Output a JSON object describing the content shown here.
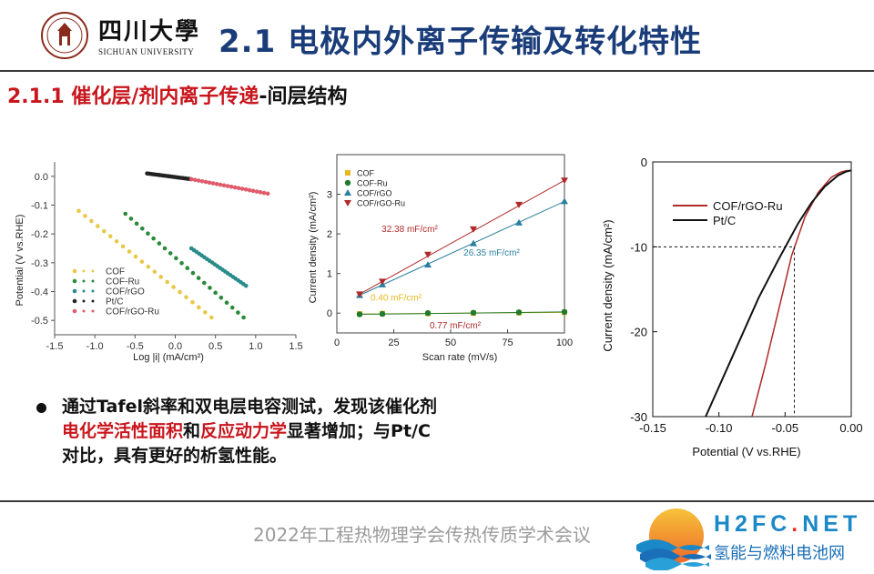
{
  "header": {
    "university_cn": "四川大學",
    "university_en": "SICHUAN UNIVERSITY",
    "title": "2.1 电极内外离子传输及转化特性"
  },
  "subheading": {
    "red_part": "2.1.1 催化层/剂内离子传递",
    "dark_part": "-间层结构"
  },
  "bullet": {
    "line1": "通过Tafel斜率和双电层电容测试，发现该催化剂",
    "line2_red_a": "电化学活性面积",
    "line2_mid": "和",
    "line2_red_b": "反应动力学",
    "line2_end": "显著增加；与Pt/C",
    "line3": "对比，具有更好的析氢性能。"
  },
  "footer": {
    "text": "2022年工程热物理学会传热传质学术会议",
    "brand": "H2FC",
    "brand_dot": ".",
    "brand_net": "NET",
    "brand_sub": "氢能与燃料电池网"
  },
  "colors": {
    "title_blue": "#1a3d7a",
    "accent_red": "#c8161d",
    "cof": "#e8c84a",
    "cof_ru": "#2a8a3a",
    "cof_rgo": "#2a8a8a",
    "ptc": "#222222",
    "cof_rgo_ru": "#e05a6a",
    "rate_cof": "#e8b820",
    "rate_cof_ru": "#1e7a2e",
    "rate_cof_rgo": "#2a7fa0",
    "rate_cof_rgo_ru": "#b02a2a"
  },
  "chart_data": [
    {
      "type": "scatter",
      "xlabel": "Log |i| (mA/cm²)",
      "ylabel": "Potential (V vs.RHE)",
      "xlim": [
        -1.5,
        1.5
      ],
      "ylim": [
        -0.55,
        0.05
      ],
      "xticks": [
        "-1.5",
        "-1.0",
        "-0.5",
        "0.0",
        "0.5",
        "1.0",
        "1.5"
      ],
      "yticks": [
        "0.0",
        "-0.1",
        "-0.2",
        "-0.3",
        "-0.4",
        "-0.5"
      ],
      "legend_position": "bottom-left",
      "series": [
        {
          "name": "COF",
          "color": "#e8c84a",
          "start": [
            -1.2,
            -0.12
          ],
          "end": [
            0.45,
            -0.49
          ]
        },
        {
          "name": "COF-Ru",
          "color": "#2a8a3a",
          "start": [
            -0.62,
            -0.13
          ],
          "end": [
            0.85,
            -0.49
          ]
        },
        {
          "name": "COF/rGO",
          "color": "#2a8a8a",
          "start": [
            0.2,
            -0.25
          ],
          "end": [
            0.88,
            -0.38
          ]
        },
        {
          "name": "Pt/C",
          "color": "#222222",
          "start": [
            -0.35,
            0.01
          ],
          "end": [
            0.2,
            -0.01
          ]
        },
        {
          "name": "COF/rGO-Ru",
          "color": "#e05a6a",
          "start": [
            0.2,
            -0.01
          ],
          "end": [
            1.15,
            -0.06
          ]
        }
      ]
    },
    {
      "type": "line",
      "xlabel": "Scan rate  (mV/s)",
      "ylabel": "Current density (mA/cm²)",
      "xlim": [
        0,
        100
      ],
      "ylim": [
        -0.5,
        4.0
      ],
      "xticks": [
        "0",
        "25",
        "50",
        "75",
        "100"
      ],
      "yticks": [
        "0",
        "1",
        "2",
        "3"
      ],
      "legend_position": "top-left",
      "x": [
        10,
        20,
        40,
        60,
        80,
        100
      ],
      "series": [
        {
          "name": "COF",
          "color": "#e8b820",
          "values": [
            -0.02,
            -0.01,
            -0.01,
            0.0,
            0.01,
            0.02
          ]
        },
        {
          "name": "COF-Ru",
          "color": "#1e7a2e",
          "values": [
            -0.03,
            -0.02,
            0.0,
            0.01,
            0.02,
            0.03
          ]
        },
        {
          "name": "COF/rGO",
          "color": "#2a7fa0",
          "values": [
            0.45,
            0.72,
            1.22,
            1.76,
            2.28,
            2.82
          ]
        },
        {
          "name": "COF/rGO-Ru",
          "color": "#b02a2a",
          "values": [
            0.48,
            0.8,
            1.48,
            2.12,
            2.74,
            3.35
          ]
        }
      ],
      "annotations": [
        {
          "text": "32.38 mF/cm²",
          "x": 32,
          "y": 2.05,
          "color": "#b02a2a"
        },
        {
          "text": "26.35 mF/cm²",
          "x": 68,
          "y": 1.45,
          "color": "#2a7fa0"
        },
        {
          "text": "0.40 mF/cm²",
          "x": 26,
          "y": 0.32,
          "color": "#e8b820"
        },
        {
          "text": "0.77 mF/cm²",
          "x": 52,
          "y": -0.38,
          "color": "#b02a2a"
        }
      ]
    },
    {
      "type": "line",
      "xlabel": "Potential (V vs.RHE)",
      "ylabel": "Current density (mA/cm²)",
      "xlim": [
        -0.15,
        0.0
      ],
      "ylim": [
        -30,
        0
      ],
      "xticks": [
        "-0.15",
        "-0.10",
        "-0.05",
        "0.00"
      ],
      "yticks": [
        "0",
        "-10",
        "-20",
        "-30"
      ],
      "legend_position": "top-left",
      "series": [
        {
          "name": "COF/rGO-Ru",
          "color": "#b02a2a",
          "x": [
            -0.075,
            -0.065,
            -0.055,
            -0.045,
            -0.035,
            -0.025,
            -0.015,
            -0.008,
            -0.004,
            0.0
          ],
          "values": [
            -30,
            -24,
            -17.5,
            -11,
            -6.5,
            -3.6,
            -1.8,
            -1.2,
            -1.05,
            -1.0
          ]
        },
        {
          "name": "Pt/C",
          "color": "#111111",
          "x": [
            -0.11,
            -0.09,
            -0.07,
            -0.055,
            -0.04,
            -0.03,
            -0.02,
            -0.01,
            -0.004,
            0.0
          ],
          "values": [
            -30,
            -23,
            -16,
            -11.5,
            -7.2,
            -4.8,
            -2.9,
            -1.6,
            -1.15,
            -1.0
          ]
        }
      ],
      "reference_lines": {
        "y": -10,
        "x": -0.043
      }
    }
  ]
}
